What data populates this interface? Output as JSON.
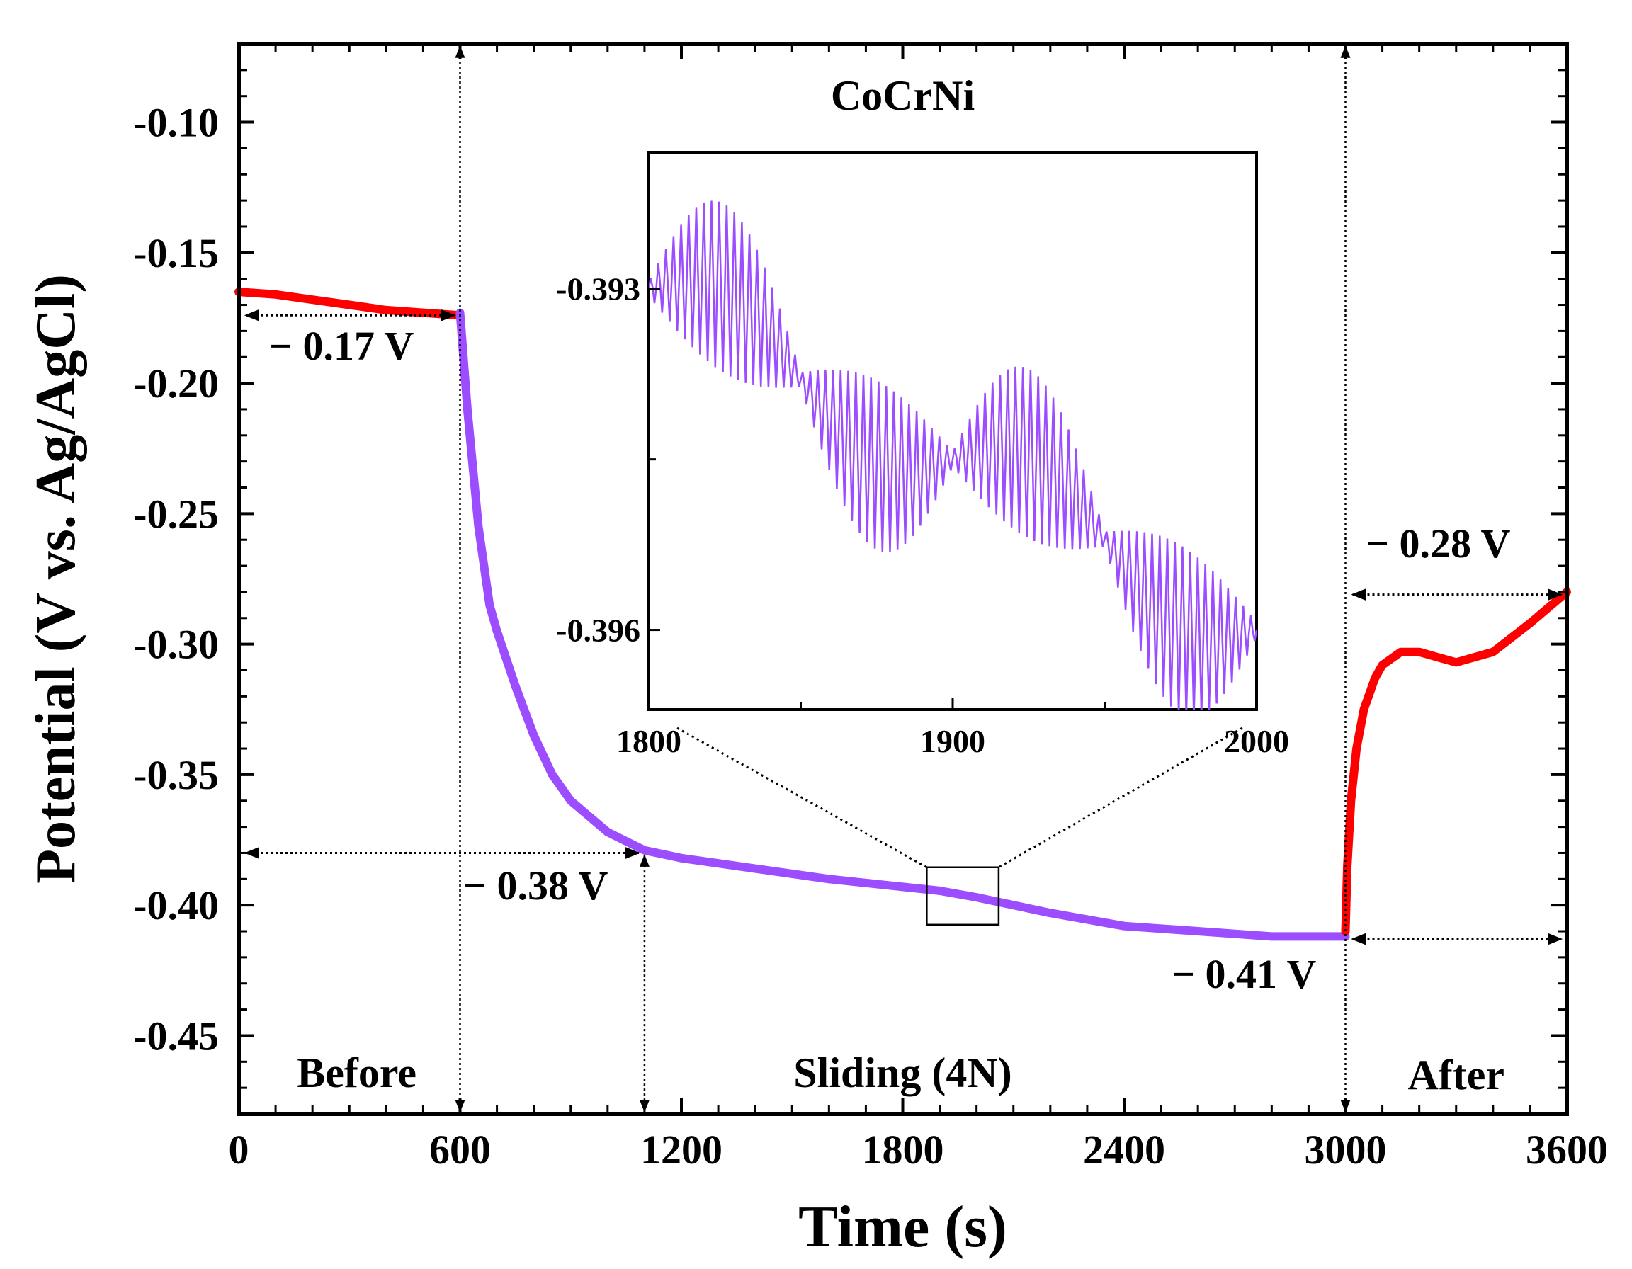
{
  "chart_data": {
    "type": "line",
    "title": "CoCrNi",
    "xlabel": "Time (s)",
    "ylabel": "Potential (V vs. Ag/AgCl)",
    "xlim": [
      0,
      3600
    ],
    "ylim": [
      -0.48,
      -0.07
    ],
    "xticks": [
      0,
      600,
      1200,
      1800,
      2400,
      3000,
      3600
    ],
    "xtick_labels": [
      "0",
      "600",
      "1200",
      "1800",
      "2400",
      "3000",
      "3600"
    ],
    "yticks": [
      -0.1,
      -0.15,
      -0.2,
      -0.25,
      -0.3,
      -0.35,
      -0.4,
      -0.45
    ],
    "ytick_labels": [
      "-0.10",
      "-0.15",
      "-0.20",
      "-0.25",
      "-0.30",
      "-0.35",
      "-0.40",
      "-0.45"
    ],
    "colors": {
      "before_after": "#ff0000",
      "sliding": "#9b4dff",
      "axis": "#000000"
    },
    "series": [
      {
        "name": "Before",
        "color": "#ff0000",
        "x": [
          0,
          100,
          200,
          300,
          400,
          500,
          600
        ],
        "y": [
          -0.165,
          -0.166,
          -0.168,
          -0.17,
          -0.172,
          -0.173,
          -0.174
        ]
      },
      {
        "name": "Sliding (4N)",
        "color": "#9b4dff",
        "x": [
          600,
          620,
          650,
          680,
          700,
          750,
          800,
          850,
          900,
          1000,
          1100,
          1200,
          1400,
          1600,
          1800,
          1900,
          2000,
          2200,
          2400,
          2600,
          2800,
          3000
        ],
        "y": [
          -0.173,
          -0.21,
          -0.255,
          -0.285,
          -0.295,
          -0.316,
          -0.335,
          -0.35,
          -0.36,
          -0.372,
          -0.379,
          -0.382,
          -0.386,
          -0.39,
          -0.393,
          -0.3945,
          -0.397,
          -0.403,
          -0.408,
          -0.41,
          -0.412,
          -0.412
        ]
      },
      {
        "name": "After",
        "color": "#ff0000",
        "x": [
          3000,
          3005,
          3015,
          3030,
          3050,
          3080,
          3100,
          3150,
          3200,
          3250,
          3300,
          3400,
          3500,
          3600
        ],
        "y": [
          -0.41,
          -0.385,
          -0.36,
          -0.34,
          -0.325,
          -0.313,
          -0.308,
          -0.303,
          -0.303,
          -0.305,
          -0.307,
          -0.303,
          -0.292,
          -0.28
        ]
      }
    ],
    "regions": [
      {
        "label": "Before",
        "x": 320
      },
      {
        "label": "Sliding (4N)",
        "x": 1800
      },
      {
        "label": "After",
        "x": 3300
      }
    ],
    "annotations": [
      {
        "text": "− 0.17 V",
        "value": -0.17,
        "arrow_x": [
          0,
          600
        ],
        "arrow_y": -0.174
      },
      {
        "text": "− 0.38 V",
        "value": -0.38,
        "arrow_x": [
          0,
          1100
        ],
        "arrow_y": -0.38
      },
      {
        "text": "− 0.41 V",
        "value": -0.41,
        "arrow_x": [
          3000,
          3600
        ],
        "arrow_y": -0.413
      },
      {
        "text": "− 0.28 V",
        "value": -0.28,
        "arrow_x": [
          3000,
          3600
        ],
        "arrow_y": -0.281
      }
    ],
    "vlines": [
      600,
      1100,
      3000
    ],
    "zoom_box": {
      "x": [
        1800,
        2000
      ],
      "y": [
        -0.4015,
        -0.3835
      ]
    },
    "inset": {
      "xlim": [
        1800,
        2000
      ],
      "ylim": [
        -0.3967,
        -0.3918
      ],
      "xticks": [
        1800,
        1900,
        2000
      ],
      "xtick_labels": [
        "1800",
        "1900",
        "2000"
      ],
      "yticks": [
        -0.393,
        -0.396
      ],
      "ytick_labels": [
        "-0.393",
        "-0.396"
      ],
      "baseline": {
        "x": [
          1800,
          1850,
          1900,
          1950,
          2000
        ],
        "y": [
          -0.393,
          -0.3938,
          -0.3945,
          -0.3952,
          -0.396
        ]
      },
      "oscillation_amplitude": 0.0008,
      "oscillation_period": 2.5
    }
  }
}
